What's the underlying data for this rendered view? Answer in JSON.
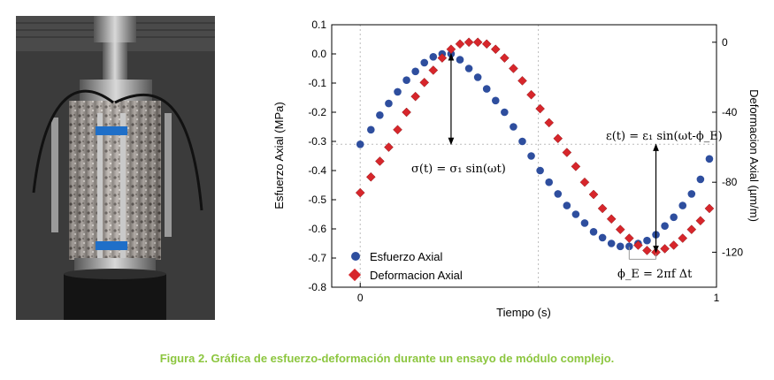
{
  "figure": {
    "caption": "Figura 2. Gráfica de esfuerzo-deformación durante un ensayo de módulo complejo.",
    "photo": {
      "subject": "specimen-in-load-frame"
    }
  },
  "colors": {
    "caption": "#8cc63f",
    "stress": "#2e4e9e",
    "strain": "#d7262b"
  },
  "annotations": {
    "stress_eq": "σ(t) = σ₁ sin(ωt)",
    "strain_eq": "ε(t) = ε₁ sin(ωt-ϕ_E)",
    "phase_eq": "ϕ_E = 2πf Δt"
  },
  "chart_data": {
    "type": "scatter",
    "title": "",
    "xlabel": "Tiempo (s)",
    "ylabel": "Esfuerzo Axial (MPa)",
    "y2label": "Deformacion Axial (µm/m)",
    "xlim": [
      -0.08,
      1.0
    ],
    "ylim": [
      -0.8,
      0.1
    ],
    "y2lim": [
      -140,
      10
    ],
    "xticks": [
      "0",
      "1"
    ],
    "xtick_values": [
      0,
      1
    ],
    "yticks": [
      "0.1",
      "0.0",
      "-0.1",
      "-0.2",
      "-0.3",
      "-0.4",
      "-0.5",
      "-0.6",
      "-0.7",
      "-0.8"
    ],
    "ytick_values": [
      0.1,
      0.0,
      -0.1,
      -0.2,
      -0.3,
      -0.4,
      -0.5,
      -0.6,
      -0.7,
      -0.8
    ],
    "y2ticks": [
      "0",
      "-40",
      "-80",
      "-120"
    ],
    "y2tick_values": [
      0,
      -40,
      -80,
      -120
    ],
    "grid": "dotted",
    "legend": "bottom-left",
    "series": [
      {
        "name": "Esfuerzo Axial",
        "marker": "circle",
        "axis": "left",
        "x": [
          0.0,
          0.03,
          0.055,
          0.08,
          0.105,
          0.13,
          0.155,
          0.18,
          0.205,
          0.23,
          0.255,
          0.28,
          0.305,
          0.33,
          0.355,
          0.38,
          0.405,
          0.43,
          0.455,
          0.48,
          0.505,
          0.53,
          0.555,
          0.58,
          0.605,
          0.63,
          0.655,
          0.68,
          0.705,
          0.73,
          0.755,
          0.78,
          0.805,
          0.83,
          0.855,
          0.88,
          0.905,
          0.93,
          0.955,
          0.98
        ],
        "values": [
          -0.31,
          -0.26,
          -0.21,
          -0.17,
          -0.13,
          -0.09,
          -0.06,
          -0.03,
          -0.01,
          0.0,
          0.0,
          -0.02,
          -0.05,
          -0.08,
          -0.12,
          -0.16,
          -0.2,
          -0.25,
          -0.3,
          -0.35,
          -0.4,
          -0.44,
          -0.48,
          -0.52,
          -0.55,
          -0.58,
          -0.61,
          -0.63,
          -0.65,
          -0.66,
          -0.66,
          -0.65,
          -0.64,
          -0.62,
          -0.59,
          -0.56,
          -0.52,
          -0.48,
          -0.43,
          -0.36
        ]
      },
      {
        "name": "Deformacion Axial",
        "marker": "diamond",
        "axis": "right",
        "x": [
          0.0,
          0.03,
          0.055,
          0.08,
          0.105,
          0.13,
          0.155,
          0.18,
          0.205,
          0.23,
          0.255,
          0.28,
          0.305,
          0.33,
          0.355,
          0.38,
          0.405,
          0.43,
          0.455,
          0.48,
          0.505,
          0.53,
          0.555,
          0.58,
          0.605,
          0.63,
          0.655,
          0.68,
          0.705,
          0.73,
          0.755,
          0.78,
          0.805,
          0.83,
          0.855,
          0.88,
          0.905,
          0.93,
          0.955,
          0.98
        ],
        "values": [
          -86,
          -77,
          -68,
          -60,
          -50,
          -40,
          -31,
          -23,
          -16,
          -9,
          -4,
          -1,
          0,
          0,
          -1,
          -4,
          -9,
          -15,
          -22,
          -30,
          -38,
          -46,
          -55,
          -63,
          -71,
          -80,
          -87,
          -95,
          -101,
          -107,
          -112,
          -116,
          -119,
          -120,
          -118,
          -116,
          -112,
          -107,
          -102,
          -95
        ]
      }
    ]
  }
}
